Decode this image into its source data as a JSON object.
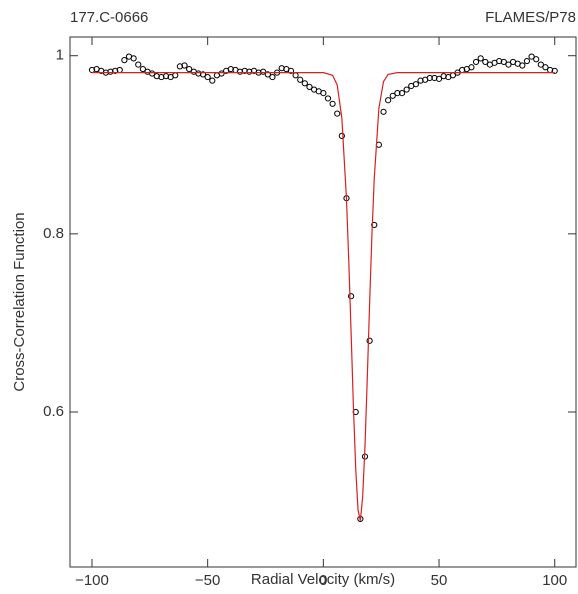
{
  "chart_data": {
    "type": "scatter",
    "title_left": "177.C-0666",
    "title_right": "FLAMES/P78",
    "xlabel": "Radial Velocity (km/s)",
    "ylabel": "Cross-Correlation Function",
    "xlim": [
      -109.5,
      109.2
    ],
    "ylim": [
      0.426,
      1.021
    ],
    "xticks": [
      {
        "value": -100,
        "label": "−100"
      },
      {
        "value": -50,
        "label": "−50"
      },
      0,
      50,
      100
    ],
    "yticks": [
      0.6,
      0.8,
      1
    ],
    "points": {
      "color": "#000000",
      "x": [
        -100,
        -98,
        -96,
        -94,
        -92,
        -90,
        -88,
        -86,
        -84,
        -82,
        -80,
        -78,
        -76,
        -74,
        -72,
        -70,
        -68,
        -66,
        -64,
        -62,
        -60,
        -58,
        -56,
        -54,
        -52,
        -50,
        -48,
        -46,
        -44,
        -42,
        -40,
        -38,
        -36,
        -34,
        -32,
        -30,
        -28,
        -26,
        -24,
        -22,
        -20,
        -18,
        -16,
        -14,
        -12,
        -10,
        -8,
        -6,
        -4,
        -2,
        0,
        2,
        4,
        6,
        8,
        10,
        12,
        14,
        16,
        18,
        20,
        22,
        24,
        26,
        28,
        30,
        32,
        34,
        36,
        38,
        40,
        42,
        44,
        46,
        48,
        50,
        52,
        54,
        56,
        58,
        60,
        62,
        64,
        66,
        68,
        70,
        72,
        74,
        76,
        78,
        80,
        82,
        84,
        86,
        88,
        90,
        92,
        94,
        96,
        98,
        100
      ],
      "values": [
        0.984,
        0.985,
        0.983,
        0.981,
        0.982,
        0.983,
        0.984,
        0.995,
        0.999,
        0.997,
        0.99,
        0.985,
        0.982,
        0.98,
        0.977,
        0.976,
        0.977,
        0.976,
        0.978,
        0.988,
        0.989,
        0.985,
        0.982,
        0.98,
        0.979,
        0.976,
        0.972,
        0.978,
        0.98,
        0.983,
        0.985,
        0.984,
        0.982,
        0.983,
        0.982,
        0.983,
        0.981,
        0.982,
        0.979,
        0.976,
        0.981,
        0.986,
        0.985,
        0.983,
        0.978,
        0.973,
        0.969,
        0.965,
        0.962,
        0.96,
        0.958,
        0.952,
        0.946,
        0.935,
        0.91,
        0.84,
        0.73,
        0.6,
        0.48,
        0.55,
        0.68,
        0.81,
        0.9,
        0.937,
        0.95,
        0.955,
        0.958,
        0.958,
        0.962,
        0.966,
        0.968,
        0.972,
        0.973,
        0.975,
        0.975,
        0.974,
        0.977,
        0.976,
        0.978,
        0.981,
        0.984,
        0.985,
        0.987,
        0.993,
        0.997,
        0.993,
        0.99,
        0.992,
        0.994,
        0.993,
        0.99,
        0.993,
        0.991,
        0.989,
        0.994,
        0.999,
        0.996,
        0.99,
        0.987,
        0.984,
        0.983
      ]
    },
    "fit": {
      "type": "line",
      "color": "#d62020",
      "x": [
        -100,
        0,
        4,
        6,
        8,
        10,
        11,
        12,
        13,
        14,
        15,
        16,
        17,
        18,
        19,
        20,
        21,
        22,
        24,
        26,
        28,
        32,
        100
      ],
      "values": [
        0.981,
        0.981,
        0.978,
        0.967,
        0.93,
        0.839,
        0.769,
        0.689,
        0.606,
        0.536,
        0.49,
        0.478,
        0.505,
        0.562,
        0.639,
        0.722,
        0.799,
        0.862,
        0.941,
        0.971,
        0.979,
        0.981,
        0.981
      ]
    }
  }
}
